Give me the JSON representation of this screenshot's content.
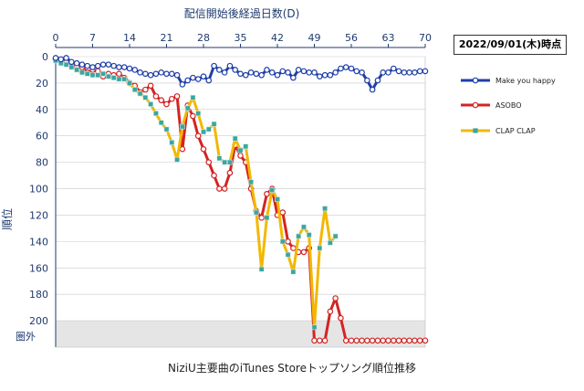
{
  "chart_data": {
    "type": "line",
    "title": "配信開始後経過日数(D)",
    "xlabel": "配信開始後経過日数(D)",
    "ylabel": "順位",
    "caption": "NiziU主要曲のiTunes Storeトップソング順位推移",
    "date_label": "2022/09/01(木)時点",
    "x_ticks": [
      0,
      7,
      14,
      21,
      28,
      35,
      42,
      49,
      56,
      63,
      70
    ],
    "y_ticks": [
      0,
      20,
      40,
      60,
      80,
      100,
      120,
      140,
      160,
      180,
      200
    ],
    "y_out_label": "圏外",
    "xlim": [
      0,
      70
    ],
    "ylim": [
      0,
      220
    ],
    "y_inverted": true,
    "out_of_chart_band": [
      200,
      220
    ],
    "legend_position": "right",
    "series": [
      {
        "name": "Make you happy",
        "color": "#1f3fa8",
        "marker": "circle-white",
        "x": [
          0,
          1,
          2,
          3,
          4,
          5,
          6,
          7,
          8,
          9,
          10,
          11,
          12,
          13,
          14,
          15,
          16,
          17,
          18,
          19,
          20,
          21,
          22,
          23,
          24,
          25,
          26,
          27,
          28,
          29,
          30,
          31,
          32,
          33,
          34,
          35,
          36,
          37,
          38,
          39,
          40,
          41,
          42,
          43,
          44,
          45,
          46,
          47,
          48,
          49,
          50,
          51,
          52,
          53,
          54,
          55,
          56,
          57,
          58,
          59,
          60,
          61,
          62,
          63,
          64,
          65,
          66,
          67,
          68,
          69,
          70
        ],
        "y": [
          1,
          2,
          1,
          4,
          5,
          6,
          7,
          8,
          7,
          6,
          6,
          7,
          8,
          8,
          9,
          10,
          12,
          13,
          14,
          13,
          12,
          13,
          13,
          14,
          21,
          18,
          16,
          17,
          15,
          18,
          7,
          10,
          12,
          7,
          10,
          13,
          14,
          12,
          13,
          14,
          10,
          12,
          14,
          11,
          12,
          16,
          10,
          11,
          12,
          12,
          15,
          14,
          14,
          12,
          9,
          8,
          9,
          11,
          12,
          18,
          25,
          18,
          12,
          12,
          9,
          11,
          12,
          12,
          12,
          11,
          11
        ]
      },
      {
        "name": "ASOBO",
        "color": "#d42323",
        "marker": "circle-white",
        "x": [
          0,
          1,
          2,
          3,
          4,
          5,
          6,
          7,
          8,
          9,
          10,
          11,
          12,
          13,
          14,
          15,
          16,
          17,
          18,
          19,
          20,
          21,
          22,
          23,
          24,
          25,
          26,
          27,
          28,
          29,
          30,
          31,
          32,
          33,
          34,
          35,
          36,
          37,
          38,
          39,
          40,
          41,
          42,
          43,
          44,
          45,
          46,
          47,
          48,
          49,
          50,
          51,
          52,
          53,
          54,
          55,
          56,
          57,
          58,
          59,
          60,
          61,
          62,
          63,
          64,
          65,
          66,
          67,
          68,
          69,
          70
        ],
        "y": [
          2,
          3,
          4,
          5,
          7,
          8,
          12,
          10,
          11,
          15,
          13,
          14,
          13,
          16,
          20,
          22,
          27,
          25,
          22,
          30,
          33,
          36,
          32,
          30,
          70,
          37,
          45,
          60,
          70,
          80,
          90,
          100,
          100,
          88,
          67,
          75,
          80,
          100,
          117,
          122,
          104,
          100,
          120,
          118,
          140,
          145,
          148,
          148,
          145,
          215,
          215,
          215,
          193,
          183,
          198,
          215,
          215,
          215,
          215,
          215,
          215,
          215,
          215,
          215,
          215,
          215,
          215,
          215,
          215,
          215,
          215
        ]
      },
      {
        "name": "CLAP CLAP",
        "color": "#f2b800",
        "marker": "square-teal",
        "x": [
          0,
          1,
          2,
          3,
          4,
          5,
          6,
          7,
          8,
          9,
          10,
          11,
          12,
          13,
          14,
          15,
          16,
          17,
          18,
          19,
          20,
          21,
          22,
          23,
          24,
          25,
          26,
          27,
          28,
          29,
          30,
          31,
          32,
          33,
          34,
          35,
          36,
          37,
          38,
          39,
          40,
          41,
          42,
          43,
          44,
          45,
          46,
          47,
          48,
          49,
          50,
          51,
          52,
          53
        ],
        "y": [
          3,
          5,
          6,
          8,
          10,
          12,
          13,
          14,
          14,
          13,
          15,
          16,
          17,
          17,
          20,
          25,
          28,
          31,
          36,
          43,
          50,
          55,
          65,
          78,
          53,
          39,
          31,
          43,
          57,
          55,
          51,
          77,
          80,
          80,
          62,
          71,
          68,
          95,
          118,
          161,
          122,
          101,
          108,
          140,
          150,
          163,
          136,
          129,
          135,
          205,
          145,
          115,
          141,
          136
        ]
      }
    ]
  },
  "colors": {
    "axis": "#1f3a6e",
    "grid": "#c9c9c9",
    "out_band": "#e5e5e5",
    "clap_marker": "#3aa6a0"
  }
}
